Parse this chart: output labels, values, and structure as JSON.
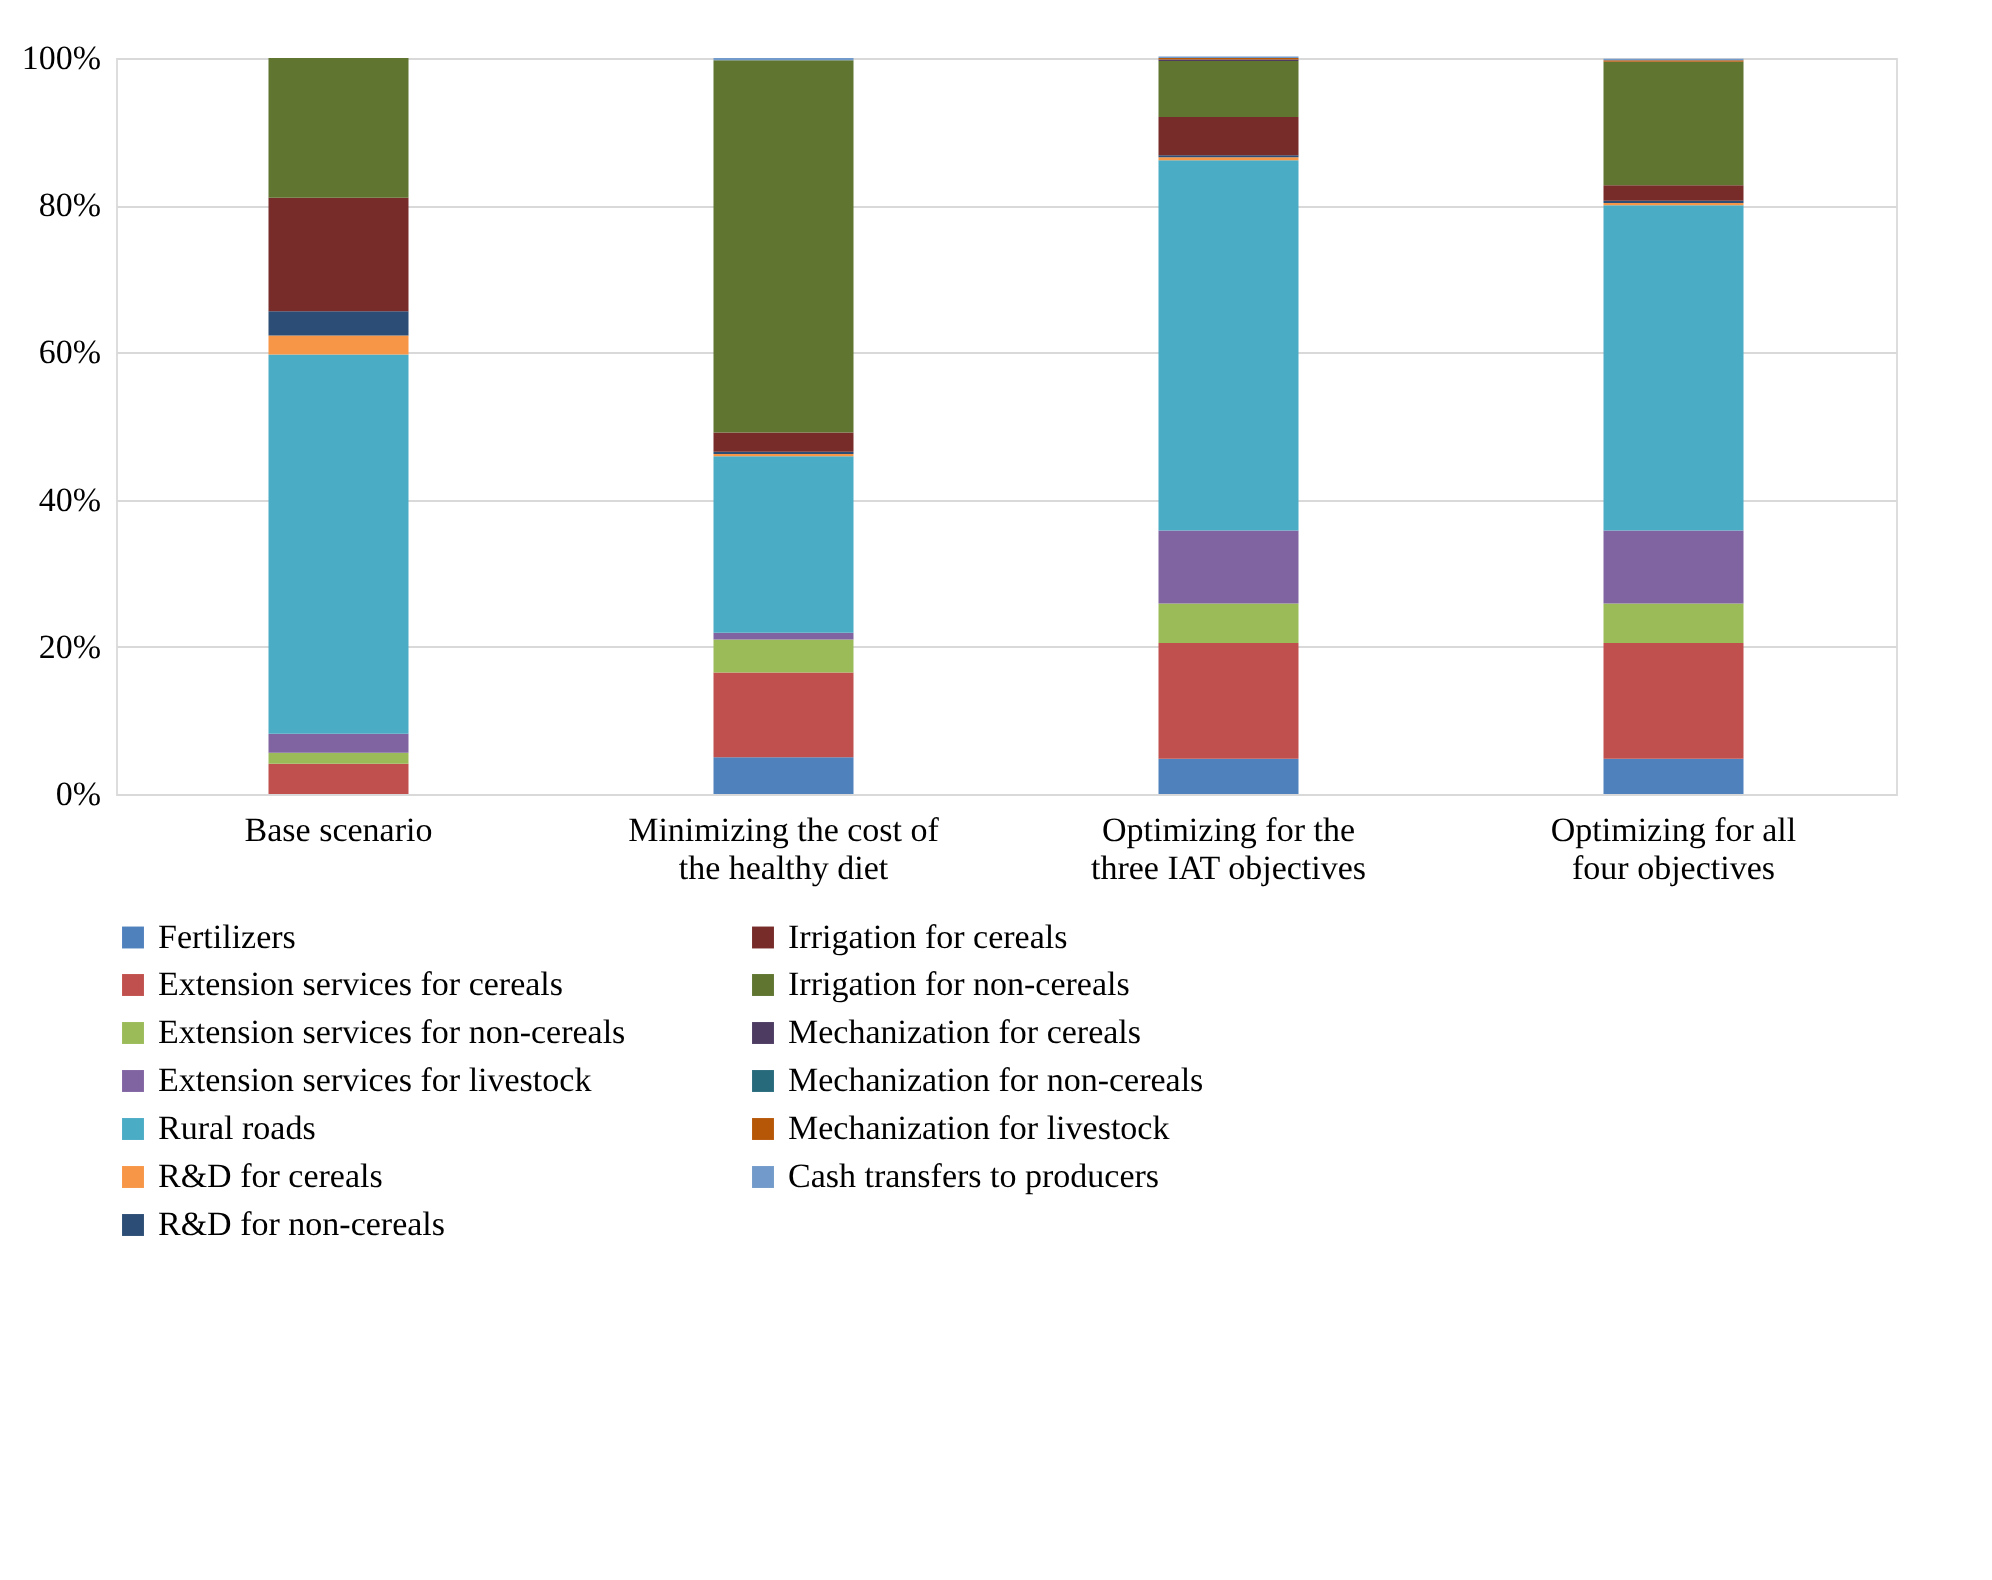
{
  "chart_data": {
    "type": "bar",
    "stacked": true,
    "categories": [
      "Base scenario",
      "Minimizing the cost of the healthy diet",
      "Optimizing for the three IAT objectives",
      "Optimizing for all four objectives"
    ],
    "ylim": [
      0,
      100
    ],
    "yticks": [
      {
        "value": 0,
        "label": "0%"
      },
      {
        "value": 20,
        "label": "20%"
      },
      {
        "value": 40,
        "label": "40%"
      },
      {
        "value": 60,
        "label": "60%"
      },
      {
        "value": 80,
        "label": "80%"
      },
      {
        "value": 100,
        "label": "100%"
      }
    ],
    "grid": "y",
    "legend": "bottom",
    "series": [
      {
        "name": "Fertilizers",
        "color": "#4f81bd",
        "values": [
          0,
          5.0,
          4.8,
          4.8
        ]
      },
      {
        "name": "Extension services for cereals",
        "color": "#c0504d",
        "values": [
          4.1,
          11.5,
          15.7,
          15.7
        ]
      },
      {
        "name": "Extension services for non-cereals",
        "color": "#9bbb59",
        "values": [
          1.5,
          4.5,
          5.4,
          5.4
        ]
      },
      {
        "name": "Extension services for livestock",
        "color": "#8064a2",
        "values": [
          2.6,
          0.9,
          9.9,
          9.9
        ]
      },
      {
        "name": "Rural roads",
        "color": "#4bacc6",
        "values": [
          51.5,
          24.0,
          50.3,
          44.2
        ]
      },
      {
        "name": "R&D for cereals",
        "color": "#f79646",
        "values": [
          2.6,
          0.3,
          0.4,
          0.3
        ]
      },
      {
        "name": "R&D for non-cereals",
        "color": "#2c4d75",
        "values": [
          3.3,
          0.3,
          0.3,
          0.3
        ]
      },
      {
        "name": "Irrigation for cereals",
        "color": "#772c2a",
        "values": [
          15.4,
          2.6,
          5.2,
          2.1
        ]
      },
      {
        "name": "Irrigation for non-cereals",
        "color": "#5f7530",
        "values": [
          19.0,
          50.6,
          7.6,
          16.8
        ]
      },
      {
        "name": "Mechanization for cereals",
        "color": "#4d3b62",
        "values": [
          0,
          0,
          0.2,
          0
        ]
      },
      {
        "name": "Mechanization for non-cereals",
        "color": "#276a7c",
        "values": [
          0,
          0,
          0,
          0
        ]
      },
      {
        "name": "Mechanization for livestock",
        "color": "#b65708",
        "values": [
          0,
          0,
          0.2,
          0.2
        ]
      },
      {
        "name": "Cash transfers to producers",
        "color": "#729aca",
        "values": [
          0,
          0.3,
          0.2,
          0.2
        ]
      }
    ]
  }
}
